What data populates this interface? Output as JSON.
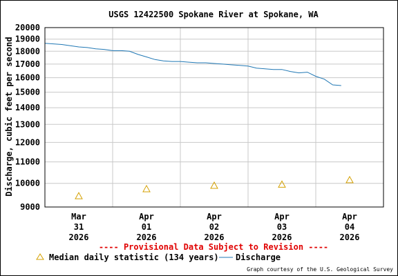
{
  "chart_data": {
    "type": "line",
    "title": "USGS 12422500 Spokane River at Spokane, WA",
    "ylabel": "Discharge, cubic feet per second",
    "xlabel": "",
    "y_scale": "log",
    "ylim": [
      9000,
      20000
    ],
    "y_ticks": [
      "20000",
      "19000",
      "18000",
      "17000",
      "16000",
      "15000",
      "14000",
      "13000",
      "12000",
      "11000",
      "10000",
      "9000"
    ],
    "x_ticks": [
      {
        "line1": "Mar",
        "line2": "31",
        "line3": "2026"
      },
      {
        "line1": "Apr",
        "line2": "01",
        "line3": "2026"
      },
      {
        "line1": "Apr",
        "line2": "02",
        "line3": "2026"
      },
      {
        "line1": "Apr",
        "line2": "03",
        "line3": "2026"
      },
      {
        "line1": "Apr",
        "line2": "04",
        "line3": "2026"
      }
    ],
    "x_days_range": [
      "2026-03-30 12:00",
      "2026-04-04 12:00"
    ],
    "grid": true,
    "provisional_note": "---- Provisional Data Subject to Revision ----",
    "credit": "Graph courtesy of the U.S. Geological Survey",
    "series": [
      {
        "name": "Discharge",
        "color": "#1f77b4",
        "kind": "line",
        "x": [
          "2026-03-30 12:00",
          "2026-03-30 15:00",
          "2026-03-30 18:00",
          "2026-03-30 21:00",
          "2026-03-31 00:00",
          "2026-03-31 03:00",
          "2026-03-31 06:00",
          "2026-03-31 09:00",
          "2026-03-31 12:00",
          "2026-03-31 15:00",
          "2026-03-31 18:00",
          "2026-03-31 21:00",
          "2026-04-01 00:00",
          "2026-04-01 03:00",
          "2026-04-01 06:00",
          "2026-04-01 09:00",
          "2026-04-01 12:00",
          "2026-04-01 15:00",
          "2026-04-01 18:00",
          "2026-04-01 21:00",
          "2026-04-02 00:00",
          "2026-04-02 03:00",
          "2026-04-02 06:00",
          "2026-04-02 09:00",
          "2026-04-02 12:00",
          "2026-04-02 15:00",
          "2026-04-02 18:00",
          "2026-04-02 21:00",
          "2026-04-03 00:00",
          "2026-04-03 03:00",
          "2026-04-03 06:00",
          "2026-04-03 09:00",
          "2026-04-03 12:00",
          "2026-04-03 15:00",
          "2026-04-03 18:00",
          "2026-04-03 21:00"
        ],
        "y": [
          18650,
          18600,
          18550,
          18450,
          18350,
          18300,
          18200,
          18150,
          18050,
          18050,
          18000,
          17750,
          17550,
          17350,
          17250,
          17200,
          17200,
          17150,
          17100,
          17100,
          17050,
          17000,
          16950,
          16900,
          16850,
          16700,
          16650,
          16600,
          16600,
          16450,
          16350,
          16400,
          16100,
          15900,
          15500,
          15450
        ]
      },
      {
        "name": "Median daily statistic (134 years)",
        "color": "#d4a000",
        "kind": "triangle",
        "x": [
          "2026-03-31 00:00",
          "2026-04-01 00:00",
          "2026-04-02 00:00",
          "2026-04-03 00:00",
          "2026-04-04 00:00"
        ],
        "y": [
          9450,
          9750,
          9900,
          9950,
          10150
        ]
      }
    ]
  }
}
